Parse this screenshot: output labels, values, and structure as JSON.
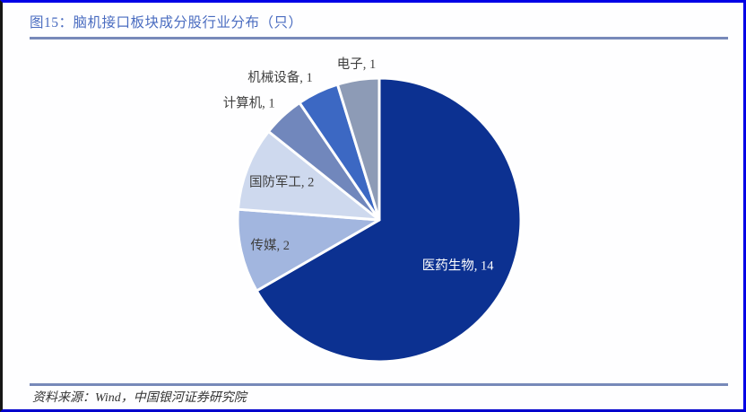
{
  "figure": {
    "title": "图15：脑机接口板块成分股行业分布（只）",
    "source": "资料来源：Wind，中国银河证券研究院"
  },
  "chart_data": {
    "type": "pie",
    "title": "脑机接口板块成分股行业分布（只）",
    "unit": "只",
    "total": 21,
    "start_angle_deg": 0,
    "direction": "clockwise",
    "legend": "none",
    "slice_border_color": "#ffffff",
    "slices": [
      {
        "label": "医药生物",
        "value": 14,
        "color": "#0c3191",
        "label_text": "医药生物, 14",
        "label_color": "#ffffff",
        "placement": "inside",
        "label_r": 0.64
      },
      {
        "label": "传媒",
        "value": 2,
        "color": "#a2b6df",
        "label_text": "传媒, 2",
        "label_color": "#404040",
        "label_color_name": "dark-gray",
        "placement": "inside",
        "label_r": 0.79
      },
      {
        "label": "国防军工",
        "value": 2,
        "color": "#ced9ee",
        "label_text": "国防军工, 2",
        "label_color": "#404040",
        "placement": "inside",
        "label_r": 0.74
      },
      {
        "label": "计算机",
        "value": 1,
        "color": "#7187bc",
        "label_text": "计算机, 1",
        "label_color": "#404040",
        "placement": "outside"
      },
      {
        "label": "机械设备",
        "value": 1,
        "color": "#3c68c3",
        "label_text": "机械设备, 1",
        "label_color": "#404040",
        "placement": "outside"
      },
      {
        "label": "电子",
        "value": 1,
        "color": "#8d9bb6",
        "label_text": "电子, 1",
        "label_color": "#404040",
        "placement": "outside"
      }
    ]
  },
  "colors": {
    "title_text": "#4a6cc0",
    "rule": "#7789b9",
    "outer_border": "#0101e6",
    "source_text": "#333333",
    "background": "#fefeff"
  }
}
